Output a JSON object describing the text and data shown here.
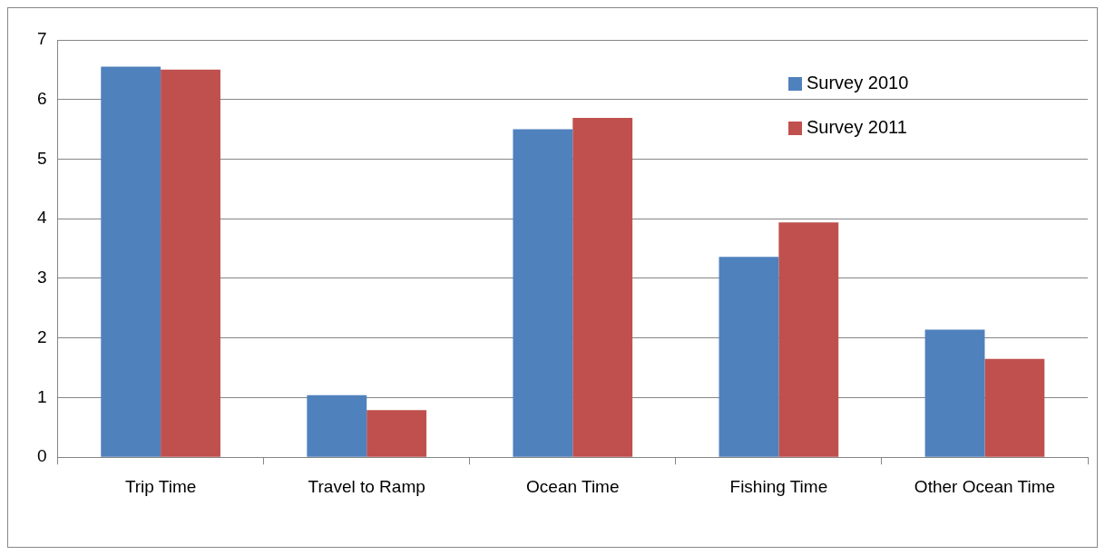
{
  "chart_data": {
    "type": "bar",
    "categories": [
      "Trip Time",
      "Travel to Ramp",
      "Ocean Time",
      "Fishing Time",
      "Other Ocean Time"
    ],
    "series": [
      {
        "name": "Survey 2010",
        "color": "#4f81bd",
        "values": [
          6.55,
          1.04,
          5.5,
          3.36,
          2.14
        ]
      },
      {
        "name": "Survey 2011",
        "color": "#c0504d",
        "values": [
          6.5,
          0.79,
          5.69,
          3.94,
          1.65
        ]
      }
    ],
    "ylim": [
      0,
      7
    ],
    "yticks": [
      0,
      1,
      2,
      3,
      4,
      5,
      6,
      7
    ],
    "grid": "y",
    "legend": "top right"
  }
}
